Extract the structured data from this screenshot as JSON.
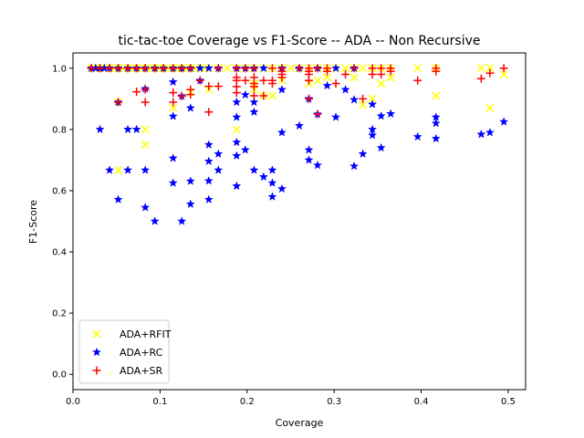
{
  "chart_data": {
    "type": "scatter",
    "title": "tic-tac-toe Coverage vs F1-Score -- ADA -- Non Recursive",
    "xlabel": "Coverage",
    "ylabel": "F1-Score",
    "xlim": [
      0.0,
      0.52
    ],
    "ylim": [
      -0.05,
      1.05
    ],
    "xticks": [
      "0.0",
      "0.1",
      "0.2",
      "0.3",
      "0.4",
      "0.5"
    ],
    "yticks": [
      "0.0",
      "0.2",
      "0.4",
      "0.6",
      "0.8",
      "1.0"
    ],
    "grid": false,
    "legend_position": "lower-left",
    "series": [
      {
        "name": "ADA+RFIT",
        "marker": "x",
        "color": "#ffff00",
        "points": [
          [
            0.021,
            1.0
          ],
          [
            0.026,
            1.0
          ],
          [
            0.031,
            1.0
          ],
          [
            0.036,
            1.0
          ],
          [
            0.042,
            1.0
          ],
          [
            0.047,
            1.0
          ],
          [
            0.052,
            1.0
          ],
          [
            0.057,
            1.0
          ],
          [
            0.063,
            1.0
          ],
          [
            0.068,
            1.0
          ],
          [
            0.073,
            1.0
          ],
          [
            0.078,
            1.0
          ],
          [
            0.083,
            1.0
          ],
          [
            0.089,
            1.0
          ],
          [
            0.094,
            1.0
          ],
          [
            0.099,
            1.0
          ],
          [
            0.104,
            1.0
          ],
          [
            0.109,
            1.0
          ],
          [
            0.115,
            1.0
          ],
          [
            0.12,
            1.0
          ],
          [
            0.125,
            1.0
          ],
          [
            0.13,
            1.0
          ],
          [
            0.135,
            1.0
          ],
          [
            0.141,
            1.0
          ],
          [
            0.146,
            1.0
          ],
          [
            0.151,
            1.0
          ],
          [
            0.156,
            1.0
          ],
          [
            0.167,
            1.0
          ],
          [
            0.177,
            1.0
          ],
          [
            0.188,
            1.0
          ],
          [
            0.198,
            1.0
          ],
          [
            0.208,
            1.0
          ],
          [
            0.219,
            1.0
          ],
          [
            0.229,
            1.0
          ],
          [
            0.24,
            1.0
          ],
          [
            0.25,
            1.0
          ],
          [
            0.26,
            1.0
          ],
          [
            0.271,
            1.0
          ],
          [
            0.281,
            1.0
          ],
          [
            0.292,
            1.0
          ],
          [
            0.302,
            1.0
          ],
          [
            0.313,
            1.0
          ],
          [
            0.323,
            1.0
          ],
          [
            0.333,
            1.0
          ],
          [
            0.344,
            1.0
          ],
          [
            0.354,
            1.0
          ],
          [
            0.365,
            1.0
          ],
          [
            0.396,
            1.0
          ],
          [
            0.417,
            1.0
          ],
          [
            0.469,
            1.0
          ],
          [
            0.479,
            1.0
          ],
          [
            0.052,
            0.667
          ],
          [
            0.083,
            0.8
          ],
          [
            0.083,
            0.75
          ],
          [
            0.188,
            0.8
          ],
          [
            0.219,
            0.91
          ],
          [
            0.229,
            0.91
          ],
          [
            0.417,
            0.91
          ],
          [
            0.479,
            0.87
          ],
          [
            0.333,
            0.88
          ],
          [
            0.344,
            0.9
          ],
          [
            0.365,
            0.97
          ],
          [
            0.495,
            0.98
          ],
          [
            0.271,
            0.95
          ],
          [
            0.281,
            0.96
          ],
          [
            0.24,
            0.96
          ],
          [
            0.208,
            0.95
          ],
          [
            0.156,
            0.93
          ],
          [
            0.115,
            0.87
          ],
          [
            0.052,
            0.89
          ],
          [
            0.135,
            0.92
          ],
          [
            0.208,
            0.93
          ],
          [
            0.292,
            0.97
          ],
          [
            0.323,
            0.97
          ],
          [
            0.354,
            0.95
          ],
          [
            0.042,
            0.0
          ]
        ]
      },
      {
        "name": "ADA+RC",
        "marker": "*",
        "color": "#0000ff",
        "points": [
          [
            0.021,
            1.0
          ],
          [
            0.026,
            1.0
          ],
          [
            0.031,
            1.0
          ],
          [
            0.036,
            1.0
          ],
          [
            0.042,
            1.0
          ],
          [
            0.052,
            1.0
          ],
          [
            0.063,
            1.0
          ],
          [
            0.073,
            1.0
          ],
          [
            0.083,
            1.0
          ],
          [
            0.094,
            1.0
          ],
          [
            0.104,
            1.0
          ],
          [
            0.115,
            1.0
          ],
          [
            0.125,
            1.0
          ],
          [
            0.135,
            1.0
          ],
          [
            0.146,
            1.0
          ],
          [
            0.156,
            1.0
          ],
          [
            0.167,
            1.0
          ],
          [
            0.188,
            1.0
          ],
          [
            0.198,
            1.0
          ],
          [
            0.208,
            1.0
          ],
          [
            0.219,
            1.0
          ],
          [
            0.24,
            1.0
          ],
          [
            0.26,
            1.0
          ],
          [
            0.281,
            1.0
          ],
          [
            0.302,
            1.0
          ],
          [
            0.323,
            1.0
          ],
          [
            0.031,
            0.8
          ],
          [
            0.042,
            0.667
          ],
          [
            0.052,
            0.571
          ],
          [
            0.052,
            0.889
          ],
          [
            0.063,
            0.8
          ],
          [
            0.063,
            0.667
          ],
          [
            0.073,
            0.8
          ],
          [
            0.083,
            0.667
          ],
          [
            0.083,
            0.545
          ],
          [
            0.094,
            0.5
          ],
          [
            0.083,
            0.933
          ],
          [
            0.115,
            0.955
          ],
          [
            0.115,
            0.843
          ],
          [
            0.115,
            0.706
          ],
          [
            0.115,
            0.625
          ],
          [
            0.125,
            0.5
          ],
          [
            0.125,
            0.909
          ],
          [
            0.135,
            0.87
          ],
          [
            0.135,
            0.631
          ],
          [
            0.135,
            0.556
          ],
          [
            0.146,
            0.96
          ],
          [
            0.156,
            0.75
          ],
          [
            0.156,
            0.696
          ],
          [
            0.156,
            0.632
          ],
          [
            0.156,
            0.571
          ],
          [
            0.167,
            0.72
          ],
          [
            0.167,
            0.667
          ],
          [
            0.188,
            0.889
          ],
          [
            0.188,
            0.84
          ],
          [
            0.188,
            0.758
          ],
          [
            0.188,
            0.714
          ],
          [
            0.188,
            0.615
          ],
          [
            0.198,
            0.913
          ],
          [
            0.198,
            0.733
          ],
          [
            0.208,
            0.889
          ],
          [
            0.208,
            0.857
          ],
          [
            0.208,
            0.667
          ],
          [
            0.219,
            0.645
          ],
          [
            0.229,
            0.667
          ],
          [
            0.229,
            0.625
          ],
          [
            0.229,
            0.58
          ],
          [
            0.24,
            0.93
          ],
          [
            0.24,
            0.79
          ],
          [
            0.24,
            0.606
          ],
          [
            0.26,
            0.812
          ],
          [
            0.271,
            0.9
          ],
          [
            0.271,
            0.733
          ],
          [
            0.271,
            0.7
          ],
          [
            0.281,
            0.85
          ],
          [
            0.281,
            0.683
          ],
          [
            0.292,
            0.943
          ],
          [
            0.302,
            0.84
          ],
          [
            0.313,
            0.93
          ],
          [
            0.323,
            0.897
          ],
          [
            0.323,
            0.68
          ],
          [
            0.333,
            0.72
          ],
          [
            0.344,
            0.8
          ],
          [
            0.344,
            0.781
          ],
          [
            0.344,
            0.882
          ],
          [
            0.354,
            0.844
          ],
          [
            0.354,
            0.74
          ],
          [
            0.365,
            0.851
          ],
          [
            0.396,
            0.776
          ],
          [
            0.417,
            0.84
          ],
          [
            0.417,
            0.82
          ],
          [
            0.417,
            0.77
          ],
          [
            0.469,
            0.784
          ],
          [
            0.479,
            0.79
          ],
          [
            0.495,
            0.825
          ]
        ]
      },
      {
        "name": "ADA+SR",
        "marker": "+",
        "color": "#ff0000",
        "points": [
          [
            0.021,
            1.0
          ],
          [
            0.031,
            1.0
          ],
          [
            0.042,
            1.0
          ],
          [
            0.052,
            1.0
          ],
          [
            0.063,
            1.0
          ],
          [
            0.073,
            1.0
          ],
          [
            0.083,
            1.0
          ],
          [
            0.094,
            1.0
          ],
          [
            0.104,
            1.0
          ],
          [
            0.115,
            1.0
          ],
          [
            0.125,
            1.0
          ],
          [
            0.135,
            1.0
          ],
          [
            0.167,
            1.0
          ],
          [
            0.188,
            1.0
          ],
          [
            0.198,
            1.0
          ],
          [
            0.208,
            1.0
          ],
          [
            0.229,
            1.0
          ],
          [
            0.24,
            1.0
          ],
          [
            0.26,
            1.0
          ],
          [
            0.271,
            1.0
          ],
          [
            0.281,
            1.0
          ],
          [
            0.292,
            1.0
          ],
          [
            0.323,
            1.0
          ],
          [
            0.344,
            1.0
          ],
          [
            0.354,
            1.0
          ],
          [
            0.365,
            1.0
          ],
          [
            0.417,
            1.0
          ],
          [
            0.495,
            1.0
          ],
          [
            0.052,
            0.889
          ],
          [
            0.073,
            0.923
          ],
          [
            0.083,
            0.889
          ],
          [
            0.083,
            0.93
          ],
          [
            0.115,
            0.92
          ],
          [
            0.115,
            0.889
          ],
          [
            0.125,
            0.909
          ],
          [
            0.135,
            0.914
          ],
          [
            0.135,
            0.93
          ],
          [
            0.146,
            0.96
          ],
          [
            0.156,
            0.941
          ],
          [
            0.156,
            0.857
          ],
          [
            0.167,
            0.941
          ],
          [
            0.188,
            0.96
          ],
          [
            0.188,
            0.94
          ],
          [
            0.188,
            0.92
          ],
          [
            0.198,
            0.96
          ],
          [
            0.208,
            0.91
          ],
          [
            0.208,
            0.95
          ],
          [
            0.208,
            0.97
          ],
          [
            0.219,
            0.91
          ],
          [
            0.219,
            0.96
          ],
          [
            0.229,
            0.95
          ],
          [
            0.229,
            0.96
          ],
          [
            0.24,
            0.97
          ],
          [
            0.24,
            0.98
          ],
          [
            0.271,
            0.98
          ],
          [
            0.271,
            0.96
          ],
          [
            0.271,
            0.9
          ],
          [
            0.281,
            0.85
          ],
          [
            0.302,
            0.95
          ],
          [
            0.313,
            0.98
          ],
          [
            0.333,
            0.9
          ],
          [
            0.344,
            0.98
          ],
          [
            0.354,
            0.98
          ],
          [
            0.365,
            0.99
          ],
          [
            0.396,
            0.96
          ],
          [
            0.417,
            0.99
          ],
          [
            0.469,
            0.966
          ],
          [
            0.479,
            0.984
          ],
          [
            0.208,
            0.94
          ],
          [
            0.188,
            0.97
          ],
          [
            0.24,
            0.99
          ],
          [
            0.271,
            0.99
          ],
          [
            0.292,
            0.99
          ]
        ]
      }
    ]
  }
}
